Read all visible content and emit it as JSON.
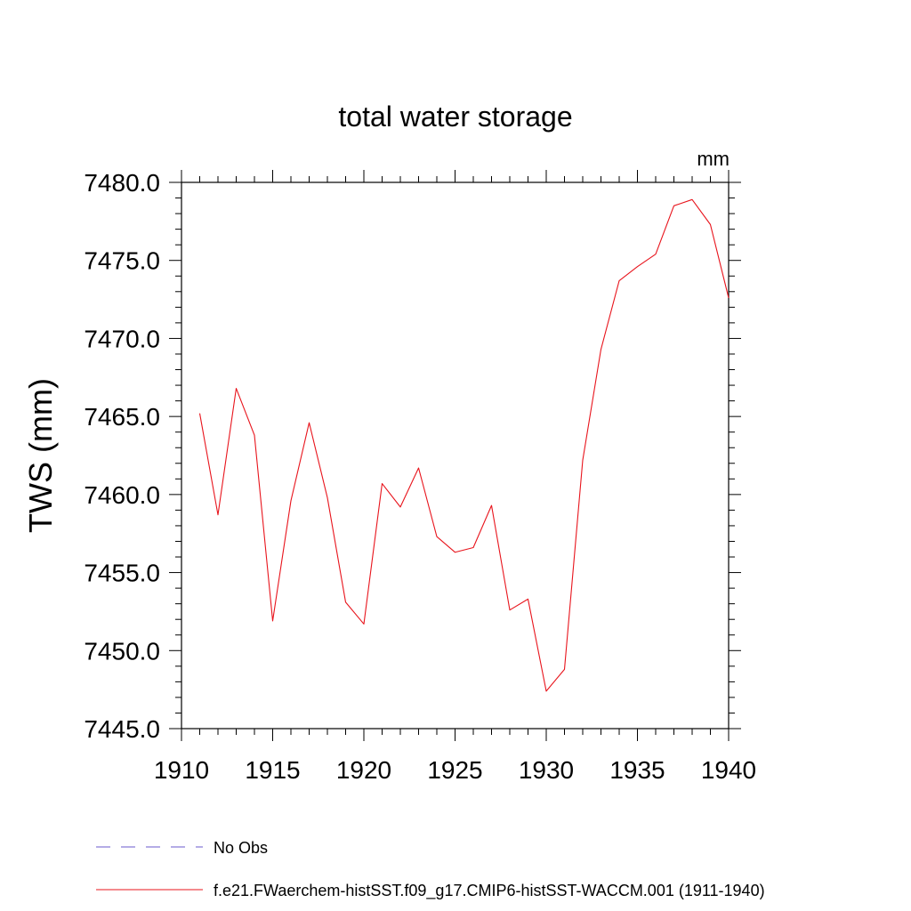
{
  "chart_data": {
    "type": "line",
    "title": "total water storage",
    "units_label": "mm",
    "ylabel": "TWS  (mm)",
    "xlabel": "",
    "xlim": [
      1910,
      1940
    ],
    "ylim": [
      7445.0,
      7480.0
    ],
    "x_ticks": [
      "1910",
      "1915",
      "1920",
      "1925",
      "1930",
      "1935",
      "1940"
    ],
    "y_ticks": [
      "7445.0",
      "7450.0",
      "7455.0",
      "7460.0",
      "7465.0",
      "7470.0",
      "7475.0",
      "7480.0"
    ],
    "grid": false,
    "legend_placement": "bottom",
    "series": [
      {
        "name": "f.e21.FWaerchem-histSST.f09_g17.CMIP6-histSST-WACCM.001 (1911-1940)",
        "color": "#e8141c",
        "style": "solid",
        "x": [
          1911,
          1912,
          1913,
          1914,
          1915,
          1916,
          1917,
          1918,
          1919,
          1920,
          1921,
          1922,
          1923,
          1924,
          1925,
          1926,
          1927,
          1928,
          1929,
          1930,
          1931,
          1932,
          1933,
          1934,
          1935,
          1936,
          1937,
          1938,
          1939,
          1940
        ],
        "y": [
          7465.2,
          7458.7,
          7466.8,
          7463.8,
          7451.9,
          7459.6,
          7464.6,
          7459.8,
          7453.1,
          7451.7,
          7460.7,
          7459.2,
          7461.7,
          7457.3,
          7456.3,
          7456.6,
          7459.3,
          7452.6,
          7453.3,
          7447.4,
          7448.8,
          7462.2,
          7469.3,
          7473.7,
          7474.6,
          7475.4,
          7478.5,
          7478.9,
          7477.3,
          7472.6
        ]
      }
    ],
    "legend": [
      {
        "label": "No Obs",
        "color": "#6a5acd",
        "style": "dashed"
      },
      {
        "label": "f.e21.FWaerchem-histSST.f09_g17.CMIP6-histSST-WACCM.001 (1911-1940)",
        "color": "#e8141c",
        "style": "solid"
      }
    ]
  }
}
